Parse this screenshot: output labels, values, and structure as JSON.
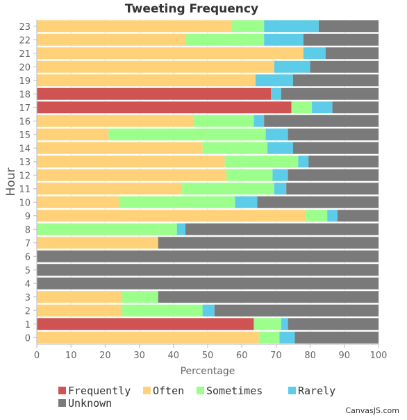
{
  "chart_data": {
    "type": "bar",
    "orientation": "horizontal",
    "stacked": "100%",
    "title": "Tweeting Frequency",
    "xlabel": "Percentage",
    "ylabel": "Hour",
    "xlim": [
      0,
      100
    ],
    "x_ticks": [
      "0",
      "10",
      "20",
      "30",
      "40",
      "50",
      "60",
      "70",
      "80",
      "90",
      "100"
    ],
    "categories": [
      "0",
      "1",
      "2",
      "3",
      "4",
      "5",
      "6",
      "7",
      "8",
      "9",
      "10",
      "11",
      "12",
      "13",
      "14",
      "15",
      "16",
      "17",
      "18",
      "19",
      "20",
      "21",
      "22",
      "23"
    ],
    "legend_position": "bottom",
    "series": [
      {
        "name": "Frequently",
        "color": "#d05353",
        "values": [
          0,
          63.5,
          0,
          0,
          0,
          0,
          0,
          0,
          0,
          0,
          0,
          0,
          0,
          0,
          0,
          0,
          0,
          74.5,
          68.5,
          0,
          0,
          0,
          0,
          0
        ]
      },
      {
        "name": "Often",
        "color": "#ffd27a",
        "values": [
          65,
          0,
          25,
          25,
          0,
          0,
          0,
          35.5,
          0,
          78.5,
          24,
          42.5,
          55.5,
          55,
          48.5,
          21,
          46,
          0,
          0,
          64,
          69.5,
          78,
          43.5,
          57
        ]
      },
      {
        "name": "Sometimes",
        "color": "#9cff8c",
        "values": [
          6,
          8,
          23.5,
          10.5,
          0,
          0,
          0,
          0,
          41,
          6.5,
          34,
          27,
          13.5,
          21.5,
          19,
          46,
          17.5,
          6,
          0,
          0,
          0,
          0,
          23,
          9.5
        ]
      },
      {
        "name": "Rarely",
        "color": "#5dcce8",
        "values": [
          4.5,
          2,
          3.5,
          0,
          0,
          0,
          0,
          0,
          2.5,
          3,
          6.5,
          3.5,
          4.5,
          3,
          7.5,
          6.5,
          3,
          6,
          3,
          11,
          10.5,
          6.5,
          11.5,
          16
        ]
      },
      {
        "name": "Unknown",
        "color": "#7a7a7a",
        "values": [
          24.5,
          26.5,
          48,
          64.5,
          100,
          100,
          100,
          64.5,
          56.5,
          12,
          35.5,
          27,
          26.5,
          20.5,
          25,
          26.5,
          33.5,
          13.5,
          28.5,
          25,
          20,
          15.5,
          22,
          17.5
        ]
      }
    ]
  },
  "credit": "CanvasJS.com"
}
